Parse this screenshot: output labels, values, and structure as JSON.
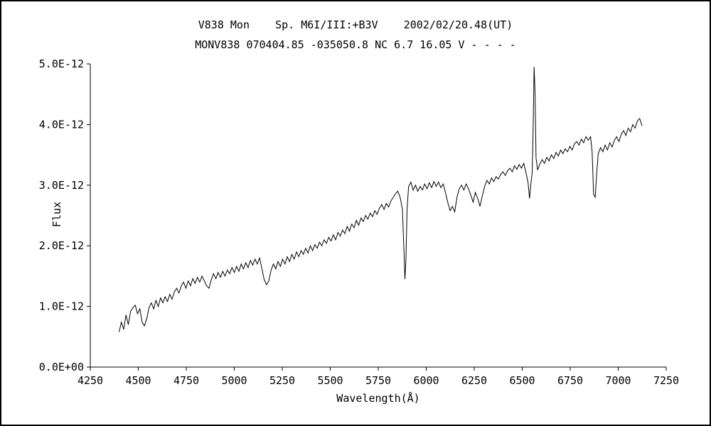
{
  "chart_data": {
    "type": "line",
    "title": "V838 Mon    Sp. M6I/III:+B3V    2002/02/20.48(UT)",
    "subtitle": "MONV838 070404.85 -035050.8 NC 6.7 16.05 V - - - -",
    "xlabel": "Wavelength(Å)",
    "ylabel": "Flux",
    "xlim": [
      4250,
      7250
    ],
    "ylim_labels": [
      "0.0E+00",
      "5.0E-12"
    ],
    "grid": false,
    "legend": "none",
    "line_color": "#000000",
    "background_color": "#ffffff",
    "x_ticks": [
      4250,
      4500,
      4750,
      5000,
      5250,
      5500,
      5750,
      6000,
      6250,
      6500,
      6750,
      7000,
      7250
    ],
    "y_ticks_e12": [
      0,
      1,
      2,
      3,
      4,
      5
    ],
    "y_tick_labels": [
      "0.0E+00",
      "1.0E-12",
      "2.0E-12",
      "3.0E-12",
      "4.0E-12",
      "5.0E-12"
    ],
    "flux_unit": "flux values below are in units of 1E-12 (matching y-axis labels)",
    "features": {
      "NaD_absorption_min": [
        5889,
        1.45
      ],
      "Halpha_emission_peak": [
        6562,
        4.95
      ],
      "telluric_B_band_min": [
        6880,
        2.8
      ]
    },
    "series": [
      {
        "name": "V838 Mon spectrum 2002/02/20.48 UT",
        "points": [
          [
            4400,
            0.58
          ],
          [
            4412,
            0.74
          ],
          [
            4424,
            0.62
          ],
          [
            4436,
            0.86
          ],
          [
            4448,
            0.7
          ],
          [
            4460,
            0.92
          ],
          [
            4472,
            0.98
          ],
          [
            4484,
            1.02
          ],
          [
            4496,
            0.88
          ],
          [
            4508,
            0.96
          ],
          [
            4520,
            0.74
          ],
          [
            4532,
            0.68
          ],
          [
            4544,
            0.8
          ],
          [
            4556,
            0.98
          ],
          [
            4568,
            1.06
          ],
          [
            4580,
            0.96
          ],
          [
            4592,
            1.1
          ],
          [
            4604,
            1.0
          ],
          [
            4616,
            1.14
          ],
          [
            4628,
            1.06
          ],
          [
            4640,
            1.16
          ],
          [
            4652,
            1.08
          ],
          [
            4664,
            1.2
          ],
          [
            4676,
            1.12
          ],
          [
            4688,
            1.24
          ],
          [
            4700,
            1.3
          ],
          [
            4712,
            1.22
          ],
          [
            4724,
            1.34
          ],
          [
            4736,
            1.4
          ],
          [
            4748,
            1.3
          ],
          [
            4760,
            1.42
          ],
          [
            4772,
            1.34
          ],
          [
            4784,
            1.46
          ],
          [
            4796,
            1.38
          ],
          [
            4808,
            1.48
          ],
          [
            4820,
            1.4
          ],
          [
            4832,
            1.5
          ],
          [
            4844,
            1.42
          ],
          [
            4856,
            1.34
          ],
          [
            4868,
            1.3
          ],
          [
            4880,
            1.44
          ],
          [
            4892,
            1.54
          ],
          [
            4904,
            1.46
          ],
          [
            4916,
            1.56
          ],
          [
            4928,
            1.48
          ],
          [
            4940,
            1.58
          ],
          [
            4952,
            1.5
          ],
          [
            4964,
            1.6
          ],
          [
            4976,
            1.54
          ],
          [
            4988,
            1.64
          ],
          [
            5000,
            1.56
          ],
          [
            5012,
            1.66
          ],
          [
            5024,
            1.58
          ],
          [
            5036,
            1.7
          ],
          [
            5048,
            1.62
          ],
          [
            5060,
            1.72
          ],
          [
            5072,
            1.64
          ],
          [
            5084,
            1.76
          ],
          [
            5096,
            1.68
          ],
          [
            5108,
            1.78
          ],
          [
            5120,
            1.7
          ],
          [
            5132,
            1.8
          ],
          [
            5144,
            1.62
          ],
          [
            5156,
            1.44
          ],
          [
            5168,
            1.36
          ],
          [
            5180,
            1.42
          ],
          [
            5192,
            1.6
          ],
          [
            5204,
            1.7
          ],
          [
            5216,
            1.62
          ],
          [
            5228,
            1.74
          ],
          [
            5240,
            1.66
          ],
          [
            5252,
            1.78
          ],
          [
            5264,
            1.7
          ],
          [
            5276,
            1.82
          ],
          [
            5288,
            1.74
          ],
          [
            5300,
            1.86
          ],
          [
            5312,
            1.78
          ],
          [
            5324,
            1.9
          ],
          [
            5336,
            1.82
          ],
          [
            5348,
            1.92
          ],
          [
            5360,
            1.86
          ],
          [
            5372,
            1.96
          ],
          [
            5384,
            1.88
          ],
          [
            5396,
            2.0
          ],
          [
            5408,
            1.92
          ],
          [
            5420,
            2.02
          ],
          [
            5432,
            1.96
          ],
          [
            5444,
            2.06
          ],
          [
            5456,
            2.0
          ],
          [
            5468,
            2.1
          ],
          [
            5480,
            2.04
          ],
          [
            5492,
            2.14
          ],
          [
            5504,
            2.08
          ],
          [
            5516,
            2.18
          ],
          [
            5528,
            2.1
          ],
          [
            5540,
            2.22
          ],
          [
            5552,
            2.16
          ],
          [
            5564,
            2.26
          ],
          [
            5576,
            2.2
          ],
          [
            5588,
            2.32
          ],
          [
            5600,
            2.24
          ],
          [
            5612,
            2.36
          ],
          [
            5624,
            2.3
          ],
          [
            5636,
            2.42
          ],
          [
            5648,
            2.34
          ],
          [
            5660,
            2.46
          ],
          [
            5672,
            2.4
          ],
          [
            5684,
            2.5
          ],
          [
            5696,
            2.44
          ],
          [
            5708,
            2.54
          ],
          [
            5720,
            2.48
          ],
          [
            5732,
            2.58
          ],
          [
            5744,
            2.52
          ],
          [
            5756,
            2.62
          ],
          [
            5768,
            2.68
          ],
          [
            5780,
            2.6
          ],
          [
            5792,
            2.7
          ],
          [
            5804,
            2.64
          ],
          [
            5816,
            2.74
          ],
          [
            5828,
            2.8
          ],
          [
            5840,
            2.86
          ],
          [
            5852,
            2.9
          ],
          [
            5864,
            2.8
          ],
          [
            5876,
            2.6
          ],
          [
            5884,
            1.9
          ],
          [
            5889,
            1.45
          ],
          [
            5894,
            1.75
          ],
          [
            5900,
            2.6
          ],
          [
            5908,
            2.98
          ],
          [
            5920,
            3.05
          ],
          [
            5932,
            2.92
          ],
          [
            5944,
            3.0
          ],
          [
            5956,
            2.9
          ],
          [
            5968,
            2.98
          ],
          [
            5980,
            2.92
          ],
          [
            5992,
            3.02
          ],
          [
            6004,
            2.94
          ],
          [
            6016,
            3.04
          ],
          [
            6028,
            2.96
          ],
          [
            6040,
            3.06
          ],
          [
            6052,
            2.98
          ],
          [
            6064,
            3.05
          ],
          [
            6076,
            2.96
          ],
          [
            6088,
            3.02
          ],
          [
            6100,
            2.88
          ],
          [
            6112,
            2.72
          ],
          [
            6124,
            2.58
          ],
          [
            6136,
            2.65
          ],
          [
            6148,
            2.56
          ],
          [
            6160,
            2.8
          ],
          [
            6172,
            2.94
          ],
          [
            6184,
            3.0
          ],
          [
            6196,
            2.92
          ],
          [
            6208,
            3.02
          ],
          [
            6220,
            2.94
          ],
          [
            6232,
            2.84
          ],
          [
            6244,
            2.72
          ],
          [
            6256,
            2.88
          ],
          [
            6268,
            2.78
          ],
          [
            6280,
            2.65
          ],
          [
            6292,
            2.82
          ],
          [
            6304,
            2.98
          ],
          [
            6316,
            3.08
          ],
          [
            6328,
            3.02
          ],
          [
            6340,
            3.12
          ],
          [
            6352,
            3.06
          ],
          [
            6364,
            3.14
          ],
          [
            6376,
            3.1
          ],
          [
            6388,
            3.18
          ],
          [
            6400,
            3.22
          ],
          [
            6412,
            3.16
          ],
          [
            6424,
            3.24
          ],
          [
            6436,
            3.28
          ],
          [
            6448,
            3.22
          ],
          [
            6460,
            3.32
          ],
          [
            6472,
            3.26
          ],
          [
            6484,
            3.34
          ],
          [
            6496,
            3.28
          ],
          [
            6508,
            3.36
          ],
          [
            6520,
            3.2
          ],
          [
            6530,
            3.05
          ],
          [
            6538,
            2.78
          ],
          [
            6546,
            3.05
          ],
          [
            6552,
            3.2
          ],
          [
            6557,
            3.95
          ],
          [
            6562,
            4.95
          ],
          [
            6567,
            4.5
          ],
          [
            6572,
            3.45
          ],
          [
            6580,
            3.25
          ],
          [
            6592,
            3.35
          ],
          [
            6604,
            3.42
          ],
          [
            6616,
            3.36
          ],
          [
            6628,
            3.46
          ],
          [
            6640,
            3.4
          ],
          [
            6652,
            3.5
          ],
          [
            6664,
            3.44
          ],
          [
            6676,
            3.54
          ],
          [
            6688,
            3.48
          ],
          [
            6700,
            3.58
          ],
          [
            6712,
            3.52
          ],
          [
            6724,
            3.6
          ],
          [
            6736,
            3.55
          ],
          [
            6748,
            3.64
          ],
          [
            6760,
            3.58
          ],
          [
            6772,
            3.68
          ],
          [
            6784,
            3.72
          ],
          [
            6796,
            3.66
          ],
          [
            6808,
            3.76
          ],
          [
            6820,
            3.7
          ],
          [
            6832,
            3.8
          ],
          [
            6844,
            3.74
          ],
          [
            6856,
            3.8
          ],
          [
            6864,
            3.55
          ],
          [
            6872,
            2.85
          ],
          [
            6880,
            2.8
          ],
          [
            6888,
            3.2
          ],
          [
            6896,
            3.52
          ],
          [
            6908,
            3.62
          ],
          [
            6920,
            3.55
          ],
          [
            6932,
            3.66
          ],
          [
            6944,
            3.58
          ],
          [
            6956,
            3.7
          ],
          [
            6968,
            3.63
          ],
          [
            6980,
            3.74
          ],
          [
            6992,
            3.8
          ],
          [
            7004,
            3.72
          ],
          [
            7016,
            3.84
          ],
          [
            7028,
            3.9
          ],
          [
            7040,
            3.82
          ],
          [
            7052,
            3.94
          ],
          [
            7064,
            3.88
          ],
          [
            7076,
            4.0
          ],
          [
            7088,
            3.94
          ],
          [
            7100,
            4.06
          ],
          [
            7112,
            4.1
          ],
          [
            7124,
            3.98
          ]
        ]
      }
    ]
  }
}
